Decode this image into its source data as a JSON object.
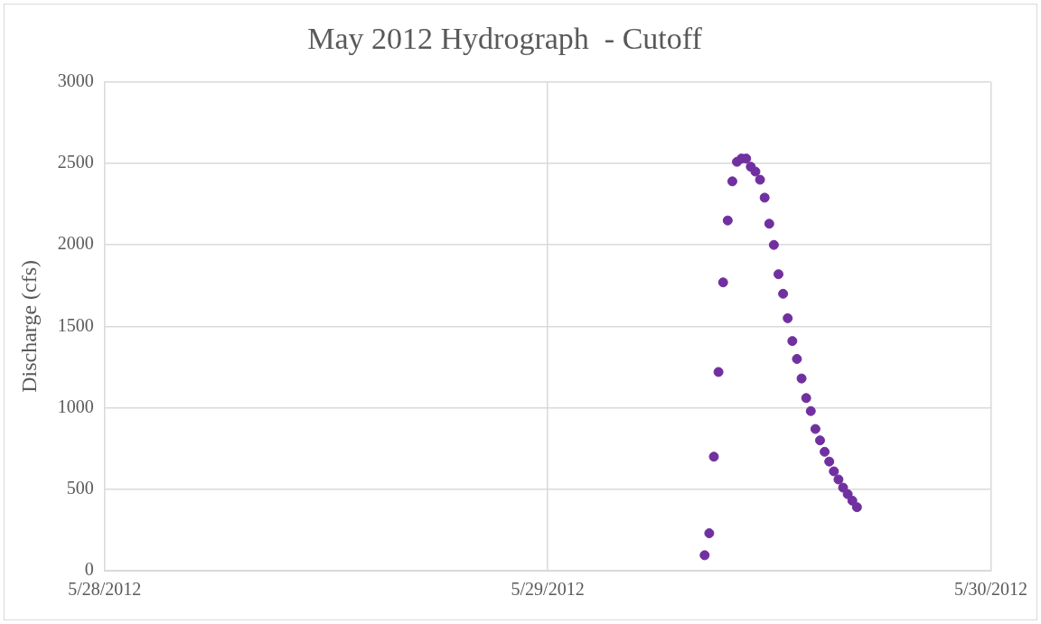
{
  "chart_data": {
    "type": "scatter",
    "title": "May 2012 Hydrograph  - Cutoff",
    "ylabel": "Discharge (cfs)",
    "x": [
      "2012-05-29T08:30",
      "2012-05-29T08:45",
      "2012-05-29T09:00",
      "2012-05-29T09:15",
      "2012-05-29T09:30",
      "2012-05-29T09:45",
      "2012-05-29T10:00",
      "2012-05-29T10:15",
      "2012-05-29T10:30",
      "2012-05-29T10:45",
      "2012-05-29T11:00",
      "2012-05-29T11:15",
      "2012-05-29T11:30",
      "2012-05-29T11:45",
      "2012-05-29T12:00",
      "2012-05-29T12:15",
      "2012-05-29T12:30",
      "2012-05-29T12:45",
      "2012-05-29T13:00",
      "2012-05-29T13:15",
      "2012-05-29T13:30",
      "2012-05-29T13:45",
      "2012-05-29T14:00",
      "2012-05-29T14:15",
      "2012-05-29T14:30",
      "2012-05-29T14:45",
      "2012-05-29T15:00",
      "2012-05-29T15:15",
      "2012-05-29T15:30",
      "2012-05-29T15:45",
      "2012-05-29T16:00",
      "2012-05-29T16:15",
      "2012-05-29T16:30",
      "2012-05-29T16:45"
    ],
    "series": [
      {
        "color": "#7030a0",
        "values": [
          95,
          230,
          700,
          1220,
          1770,
          2150,
          2390,
          2510,
          2530,
          2530,
          2480,
          2450,
          2400,
          2290,
          2130,
          2000,
          1820,
          1700,
          1550,
          1410,
          1300,
          1180,
          1060,
          980,
          870,
          800,
          730,
          670,
          610,
          560,
          510,
          470,
          430,
          390
        ]
      }
    ],
    "xlim": [
      "2012-05-28",
      "2012-05-30"
    ],
    "xticks": [
      {
        "value": "2012-05-28",
        "label": "5/28/2012"
      },
      {
        "value": "2012-05-29",
        "label": "5/29/2012"
      },
      {
        "value": "2012-05-30",
        "label": "5/30/2012"
      }
    ],
    "ylim": [
      0,
      3000
    ],
    "yticks": [
      0,
      500,
      1000,
      1500,
      2000,
      2500,
      3000
    ],
    "grid": true,
    "legend": false,
    "marker": "circle"
  }
}
